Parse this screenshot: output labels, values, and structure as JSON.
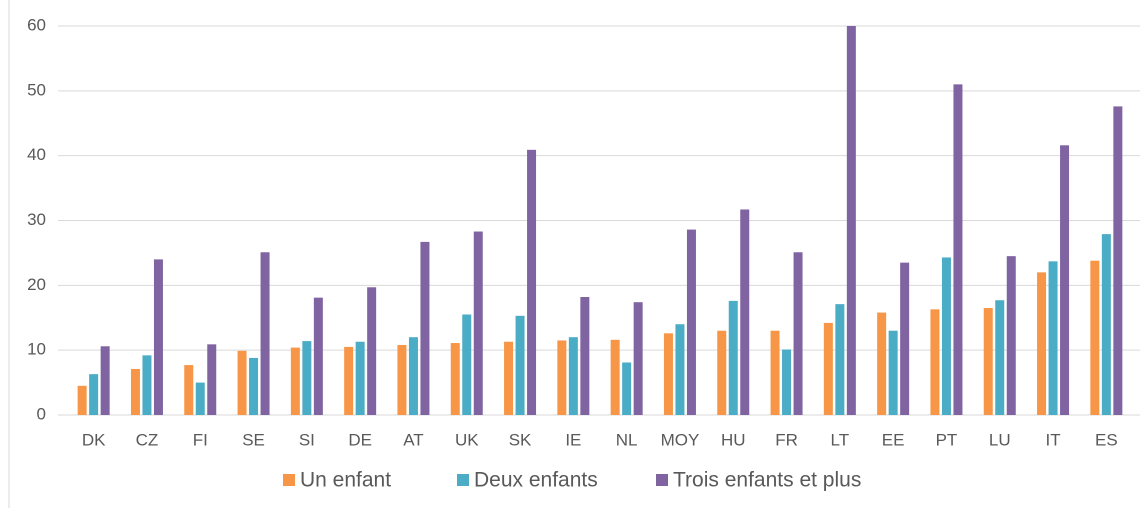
{
  "chart_data": {
    "type": "bar",
    "categories": [
      "DK",
      "CZ",
      "FI",
      "SE",
      "SI",
      "DE",
      "AT",
      "UK",
      "SK",
      "IE",
      "NL",
      "MOY",
      "HU",
      "FR",
      "LT",
      "EE",
      "PT",
      "LU",
      "IT",
      "ES"
    ],
    "series": [
      {
        "name": "Un enfant",
        "color": "#f79646",
        "values": [
          4.5,
          7.1,
          7.7,
          9.9,
          10.4,
          10.5,
          10.8,
          11.1,
          11.3,
          11.5,
          11.6,
          12.6,
          13.0,
          13.0,
          14.2,
          15.8,
          16.3,
          16.5,
          22.0,
          23.8
        ]
      },
      {
        "name": "Deux enfants",
        "color": "#4bacc6",
        "values": [
          6.3,
          9.2,
          5.0,
          8.8,
          11.4,
          11.3,
          12.0,
          15.5,
          15.3,
          12.0,
          8.1,
          14.0,
          17.6,
          10.1,
          17.1,
          13.0,
          24.3,
          17.7,
          23.7,
          27.9
        ]
      },
      {
        "name": "Trois enfants et plus",
        "color": "#8064a2",
        "values": [
          10.6,
          24.0,
          10.9,
          25.1,
          18.1,
          19.7,
          26.7,
          28.3,
          40.9,
          18.2,
          17.4,
          28.6,
          31.7,
          25.1,
          60,
          23.5,
          51.0,
          24.5,
          41.6,
          47.6
        ]
      }
    ],
    "ylim": [
      0,
      60
    ],
    "yticks": [
      0,
      10,
      20,
      30,
      40,
      50,
      60
    ],
    "grid": true,
    "legend": "bottom"
  }
}
